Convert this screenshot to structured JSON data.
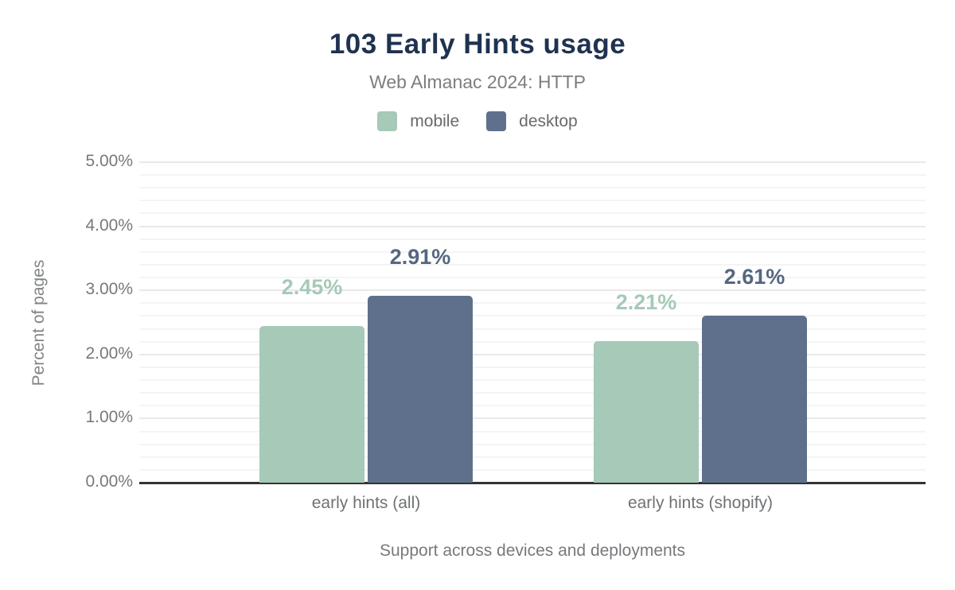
{
  "header": {
    "title": "103 Early Hints usage",
    "subtitle": "Web Almanac 2024: HTTP"
  },
  "colors": {
    "title_navy": "#1f3251",
    "axis_text_gray": "#76797c",
    "baseline_dark": "#333333",
    "grid_minor": "#f4f4f4",
    "grid_major": "#e9e9e9"
  },
  "chart_data": {
    "type": "bar",
    "title": "103 Early Hints usage",
    "subtitle": "Web Almanac 2024: HTTP",
    "categories": [
      "early hints (all)",
      "early hints (shopify)"
    ],
    "series": [
      {
        "name": "mobile",
        "values": [
          2.45,
          2.21
        ],
        "labels": [
          "2.45%",
          "2.21%"
        ],
        "color": "#a6c9b8",
        "label_color": "#a6c9b8"
      },
      {
        "name": "desktop",
        "values": [
          2.91,
          2.61
        ],
        "labels": [
          "2.91%",
          "2.61%"
        ],
        "color": "#5e708c",
        "label_color": "#55677f"
      }
    ],
    "xlabel": "Support across devices and deployments",
    "ylabel": "Percent of pages",
    "ylim": [
      0,
      5
    ],
    "y_ticks": [
      "0.00%",
      "1.00%",
      "2.00%",
      "3.00%",
      "4.00%",
      "5.00%"
    ],
    "y_major_step": 1,
    "y_minor_step": 0.2,
    "grid": true,
    "legend_position": "top"
  }
}
